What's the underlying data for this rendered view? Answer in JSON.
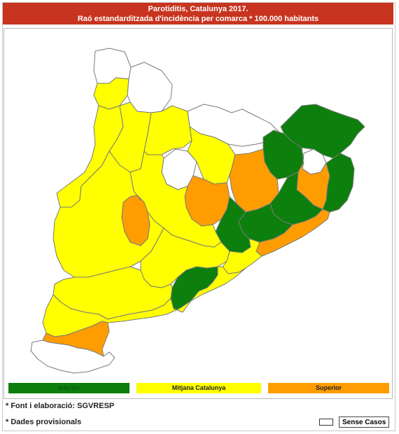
{
  "header": {
    "title": "Parotiditis, Catalunya 2017.",
    "subtitle": "Raó estandarditzada d'incidència per comarca * 100.000 habitants"
  },
  "colors": {
    "header_bg": "#c8341f",
    "inferior": "#0c7f0c",
    "mitjana": "#ffff00",
    "superior": "#ff9d00",
    "sense_casos": "#ffffff",
    "border": "#7a7a7a"
  },
  "legend": {
    "inferior": "Inferior",
    "mitjana": "Mitjana Catalunya",
    "superior": "Superior",
    "sense_casos": "Sense Casos"
  },
  "notes": {
    "font": "* Font i elaboració: SGVRESP",
    "provisional": "* Dades provisionals"
  },
  "map": {
    "regions": [
      {
        "category": "sense_casos",
        "name": "val-aran"
      },
      {
        "category": "mitjana",
        "name": "north-west-top"
      },
      {
        "category": "sense_casos",
        "name": "pallars-north"
      },
      {
        "category": "sense_casos",
        "name": "cerdanya-ripolles"
      },
      {
        "category": "mitjana",
        "name": "west-upper"
      },
      {
        "category": "mitjana",
        "name": "pallars-jussa"
      },
      {
        "category": "mitjana",
        "name": "alt-urgell"
      },
      {
        "category": "sense_casos",
        "name": "solsones-gap"
      },
      {
        "category": "mitjana",
        "name": "bergueda"
      },
      {
        "category": "inferior",
        "name": "garrotxa-alt-emporda"
      },
      {
        "category": "inferior",
        "name": "ripolles-east"
      },
      {
        "category": "sense_casos",
        "name": "gironès-hole"
      },
      {
        "category": "superior",
        "name": "osona"
      },
      {
        "category": "superior",
        "name": "la-selva"
      },
      {
        "category": "inferior",
        "name": "baix-emporda"
      },
      {
        "category": "superior",
        "name": "bages"
      },
      {
        "category": "inferior",
        "name": "valles-oriental"
      },
      {
        "category": "inferior",
        "name": "maresme-upper"
      },
      {
        "category": "superior",
        "name": "maresme-coast"
      },
      {
        "category": "inferior",
        "name": "anoia"
      },
      {
        "category": "mitjana",
        "name": "central-west"
      },
      {
        "category": "superior",
        "name": "urgell"
      },
      {
        "category": "mitjana",
        "name": "segria-garrigues"
      },
      {
        "category": "mitjana",
        "name": "conca-priorat"
      },
      {
        "category": "mitjana",
        "name": "barcelones-south"
      },
      {
        "category": "inferior",
        "name": "alt-penedes"
      },
      {
        "category": "mitjana",
        "name": "terra-alta-ribera"
      },
      {
        "category": "mitjana",
        "name": "baix-camp-tarragones"
      },
      {
        "category": "superior",
        "name": "baix-ebre"
      },
      {
        "category": "sense_casos",
        "name": "montsia"
      }
    ]
  }
}
